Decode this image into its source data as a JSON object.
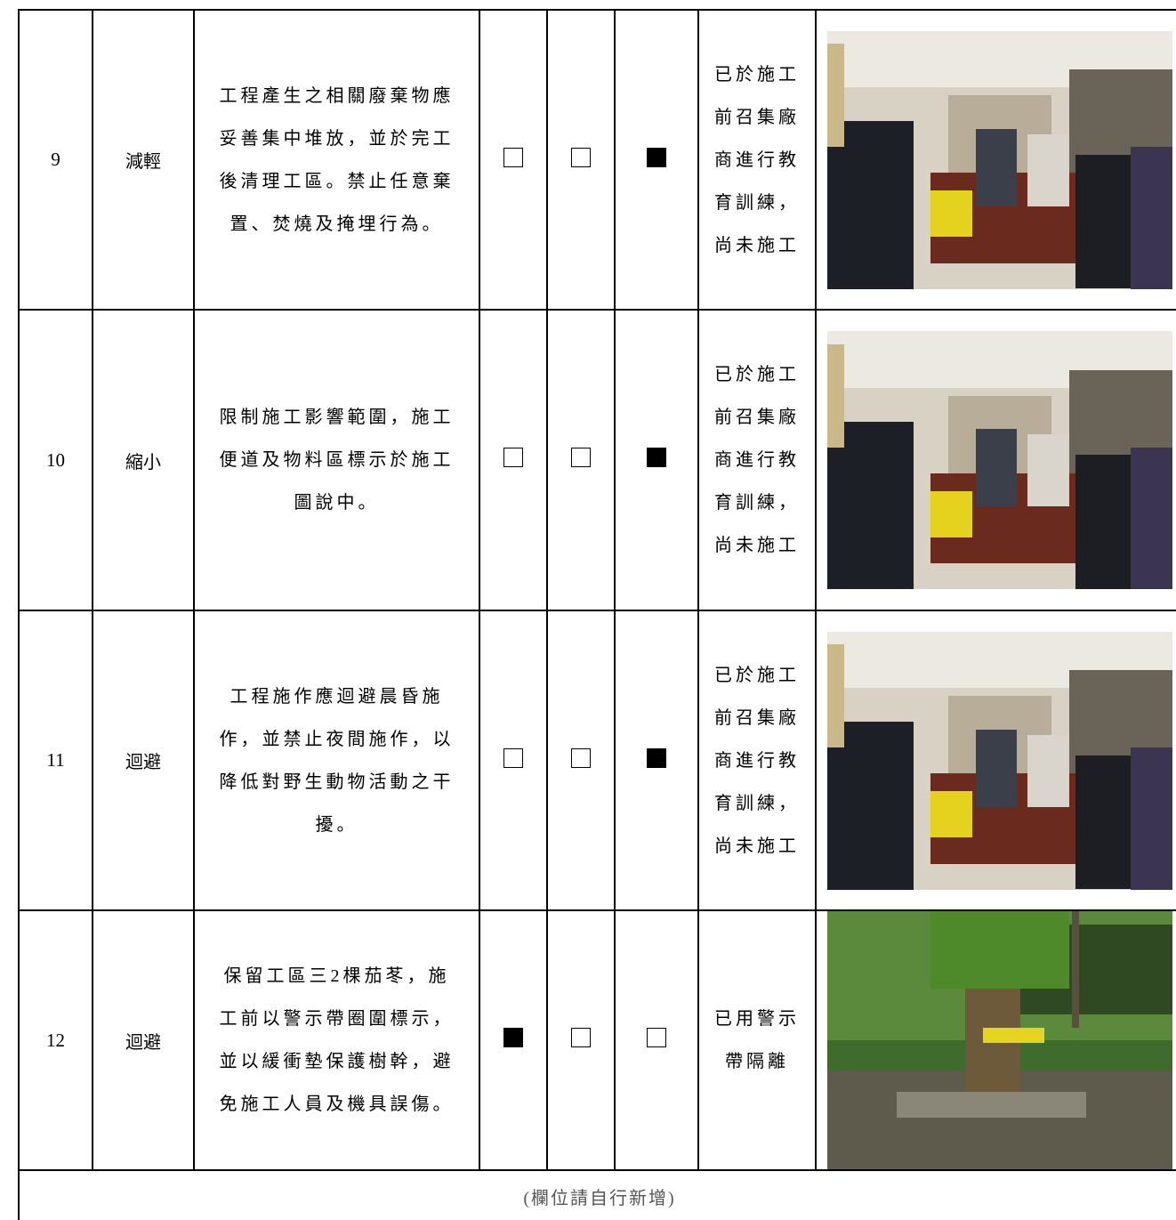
{
  "table": {
    "rows": [
      {
        "no": "9",
        "action": "減輕",
        "content": "工程產生之相關廢棄物應妥善集中堆放，並於完工後清理工區。禁止任意棄置、焚燒及掩埋行為。",
        "checks": [
          false,
          false,
          true
        ],
        "status": "已於施工前召集廠商進行教育訓練，尚未施工"
      },
      {
        "no": "10",
        "action": "縮小",
        "content": "限制施工影響範圍，施工便道及物料區標示於施工圖說中。",
        "checks": [
          false,
          false,
          true
        ],
        "status": "已於施工前召集廠商進行教育訓練，尚未施工"
      },
      {
        "no": "11",
        "action": "迴避",
        "content": "工程施作應迴避晨昏施作，並禁止夜間施作，以降低對野生動物活動之干擾。",
        "checks": [
          false,
          false,
          true
        ],
        "status": "已於施工前召集廠商進行教育訓練，尚未施工"
      },
      {
        "no": "12",
        "action": "迴避",
        "content": "保留工區三2棵茄苳，施工前以警示帶圈圍標示，並以緩衝墊保護樹幹，避免施工人員及機具誤傷。",
        "checks": [
          true,
          false,
          false
        ],
        "status": "已用警示帶隔離"
      }
    ],
    "footer": "(欄位請自行新增)"
  }
}
